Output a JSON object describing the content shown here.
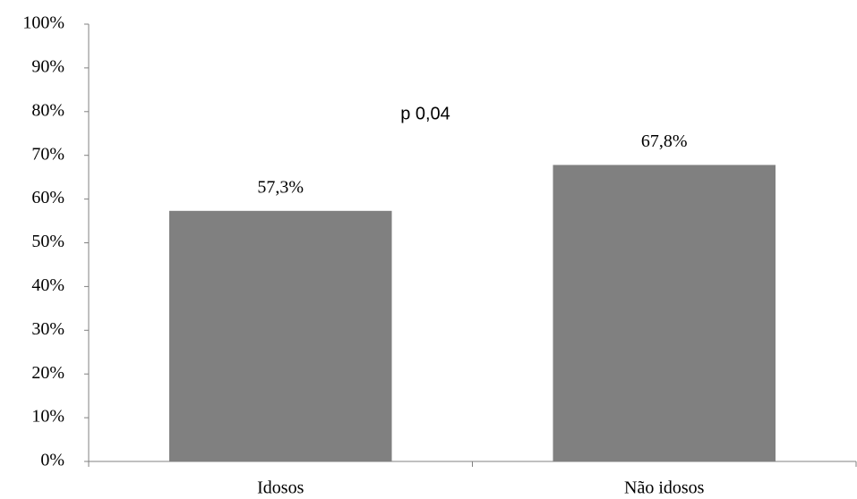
{
  "chart_data": {
    "type": "bar",
    "categories": [
      "Idosos",
      "Não idosos"
    ],
    "values": [
      57.3,
      67.8
    ],
    "value_labels": [
      "57,3%",
      "67,8%"
    ],
    "color": "#808080",
    "annotation": "p 0,04",
    "ylim": [
      0,
      100
    ],
    "yticks": [
      {
        "value": 0,
        "label": "0%"
      },
      {
        "value": 10,
        "label": "10%"
      },
      {
        "value": 20,
        "label": "20%"
      },
      {
        "value": 30,
        "label": "30%"
      },
      {
        "value": 40,
        "label": "40%"
      },
      {
        "value": 50,
        "label": "50%"
      },
      {
        "value": 60,
        "label": "60%"
      },
      {
        "value": 70,
        "label": "70%"
      },
      {
        "value": 80,
        "label": "80%"
      },
      {
        "value": 90,
        "label": "90%"
      },
      {
        "value": 100,
        "label": "100%"
      }
    ],
    "grid": false
  }
}
